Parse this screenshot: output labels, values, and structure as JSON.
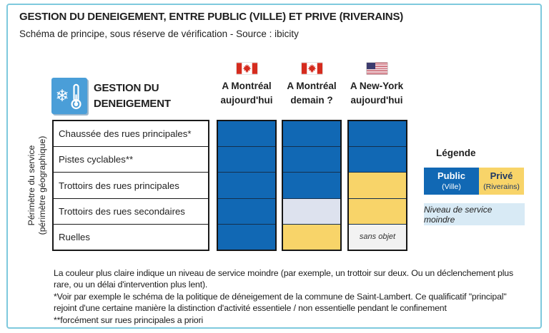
{
  "header": {
    "title": "GESTION DU DENEIGEMENT, ENTRE PUBLIC (VILLE) ET PRIVE (RIVERAINS)",
    "subtitle": "Schéma de principe, sous réserve de vérification - Source : ibicity"
  },
  "icons": {
    "snowflake": "❄"
  },
  "matrix": {
    "corner_title_line1": "GESTION DU",
    "corner_title_line2": "DENEIGEMENT",
    "axis_label_line1": "Périmètre du service",
    "axis_label_line2": "(périmètre géographique)",
    "columns": [
      {
        "flag": "canada-flag",
        "label_line1": "A Montréal",
        "label_line2": "aujourd'hui"
      },
      {
        "flag": "canada-flag",
        "label_line1": "A Montréal",
        "label_line2": "demain ?"
      },
      {
        "flag": "usa-flag",
        "label_line1": "A New-York",
        "label_line2": "aujourd'hui"
      }
    ],
    "rows": [
      "Chaussée des rues principales*",
      "Pistes cyclables**",
      "Trottoirs des rues principales",
      "Trottoirs des rues secondaires",
      "Ruelles"
    ],
    "cells": [
      [
        "public",
        "public",
        "public"
      ],
      [
        "public",
        "public",
        "public"
      ],
      [
        "public",
        "public",
        "prive"
      ],
      [
        "public",
        "moindre",
        "prive"
      ],
      [
        "public",
        "prive",
        "sans_objet"
      ]
    ],
    "sans_objet_label": "sans objet"
  },
  "legend": {
    "title": "Légende",
    "public_label": "Public",
    "public_sub": "(Ville)",
    "prive_label": "Privé",
    "prive_sub": "(Riverains)",
    "moindre_label": "Niveau de service moindre"
  },
  "footnotes": {
    "lines": [
      "La couleur plus claire indique un niveau de service moindre (par exemple, un trottoir sur deux. Ou un déclenchement plus",
      "rare, ou un délai d'intervention plus lent).",
      "*Voir par exemple le schéma de la politique de déneigement de la commune de Saint-Lambert. Ce qualificatif \"principal\"",
      "rejoint d'une certaine manière la distinction d'activité essentiele / non essentielle pendant le confinement",
      "**forcément sur rues principales a priori"
    ]
  },
  "colors": {
    "public": "#1168B4",
    "prive": "#F8D469",
    "moindre": "#DDE2EE",
    "sans_objet": "#F2F2F2",
    "legend_moindre_bg": "#D8EAF5",
    "icon_blue": "#4A9ED8",
    "frame_border": "#7EC9DD",
    "flag_red": "#D52B1E"
  }
}
